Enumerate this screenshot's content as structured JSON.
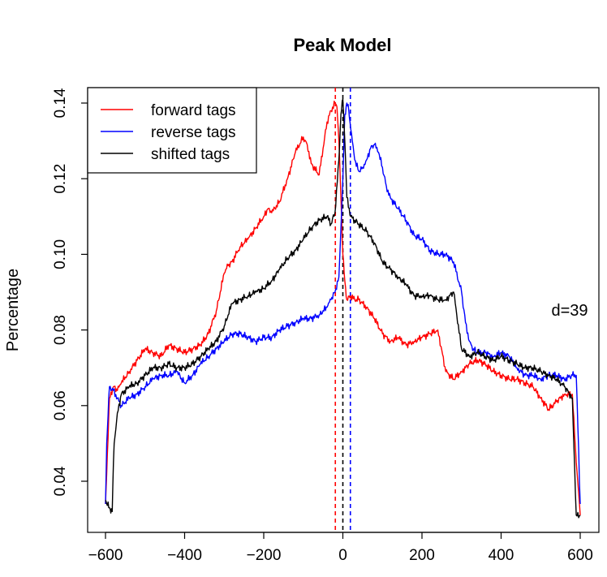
{
  "chart_data": {
    "type": "line",
    "title": "Peak Model",
    "xlabel": "",
    "ylabel": "Percentage",
    "xlim": [
      -620,
      620
    ],
    "ylim": [
      0.029,
      0.142
    ],
    "xticks": [
      -600,
      -400,
      -200,
      0,
      200,
      400,
      600
    ],
    "xtick_labels": [
      "−600",
      "−400",
      "−200",
      "0",
      "200",
      "400",
      "600"
    ],
    "yticks": [
      0.04,
      0.06,
      0.08,
      0.1,
      0.12,
      0.14
    ],
    "ytick_labels": [
      "0.04",
      "0.06",
      "0.08",
      "0.10",
      "0.12",
      "0.14"
    ],
    "legend_position": "top-left",
    "annotation": "d=39",
    "vlines": [
      {
        "x": -19,
        "color": "#ff0000"
      },
      {
        "x": 0,
        "color": "#000000"
      },
      {
        "x": 19,
        "color": "#0000ff"
      }
    ],
    "series": [
      {
        "name": "forward tags",
        "color": "#ff0000",
        "x": [
          -600,
          -597,
          -590,
          -580,
          -570,
          -560,
          -540,
          -520,
          -500,
          -480,
          -460,
          -440,
          -420,
          -400,
          -380,
          -360,
          -340,
          -320,
          -300,
          -290,
          -280,
          -260,
          -240,
          -220,
          -200,
          -190,
          -180,
          -160,
          -140,
          -120,
          -100,
          -90,
          -80,
          -60,
          -50,
          -40,
          -30,
          -20,
          -15,
          -10,
          -5,
          0,
          5,
          10,
          20,
          30,
          40,
          60,
          80,
          100,
          120,
          140,
          160,
          180,
          200,
          220,
          240,
          260,
          280,
          300,
          320,
          340,
          360,
          380,
          400,
          420,
          440,
          460,
          480,
          500,
          520,
          540,
          560,
          580,
          590,
          600
        ],
        "y": [
          0.034,
          0.042,
          0.062,
          0.065,
          0.064,
          0.066,
          0.069,
          0.072,
          0.075,
          0.074,
          0.073,
          0.076,
          0.075,
          0.074,
          0.075,
          0.076,
          0.079,
          0.085,
          0.095,
          0.097,
          0.098,
          0.102,
          0.104,
          0.107,
          0.11,
          0.112,
          0.111,
          0.114,
          0.12,
          0.127,
          0.131,
          0.129,
          0.124,
          0.121,
          0.128,
          0.135,
          0.138,
          0.14,
          0.139,
          0.13,
          0.115,
          0.1,
          0.093,
          0.088,
          0.089,
          0.088,
          0.088,
          0.086,
          0.083,
          0.079,
          0.077,
          0.078,
          0.076,
          0.077,
          0.078,
          0.079,
          0.08,
          0.069,
          0.067,
          0.069,
          0.071,
          0.072,
          0.071,
          0.069,
          0.068,
          0.067,
          0.067,
          0.066,
          0.065,
          0.062,
          0.059,
          0.061,
          0.063,
          0.063,
          0.045,
          0.031
        ]
      },
      {
        "name": "reverse tags",
        "color": "#0000ff",
        "x": [
          -600,
          -597,
          -590,
          -580,
          -570,
          -560,
          -540,
          -520,
          -500,
          -480,
          -460,
          -440,
          -420,
          -400,
          -380,
          -360,
          -340,
          -320,
          -300,
          -280,
          -260,
          -240,
          -220,
          -200,
          -180,
          -160,
          -140,
          -120,
          -100,
          -80,
          -60,
          -40,
          -30,
          -20,
          -10,
          0,
          5,
          10,
          15,
          20,
          30,
          40,
          50,
          60,
          70,
          80,
          90,
          100,
          110,
          120,
          140,
          160,
          180,
          200,
          220,
          240,
          260,
          280,
          300,
          310,
          320,
          330,
          340,
          360,
          380,
          400,
          420,
          440,
          460,
          480,
          500,
          520,
          540,
          560,
          580,
          590,
          600
        ],
        "y": [
          0.034,
          0.05,
          0.065,
          0.064,
          0.062,
          0.06,
          0.062,
          0.063,
          0.065,
          0.067,
          0.068,
          0.068,
          0.069,
          0.066,
          0.068,
          0.071,
          0.073,
          0.075,
          0.077,
          0.079,
          0.079,
          0.078,
          0.077,
          0.078,
          0.078,
          0.08,
          0.081,
          0.082,
          0.083,
          0.083,
          0.084,
          0.086,
          0.088,
          0.09,
          0.094,
          0.12,
          0.137,
          0.14,
          0.138,
          0.133,
          0.125,
          0.122,
          0.123,
          0.125,
          0.128,
          0.129,
          0.127,
          0.123,
          0.118,
          0.115,
          0.112,
          0.109,
          0.105,
          0.104,
          0.101,
          0.1,
          0.1,
          0.098,
          0.09,
          0.082,
          0.077,
          0.075,
          0.074,
          0.074,
          0.073,
          0.074,
          0.073,
          0.07,
          0.068,
          0.068,
          0.067,
          0.068,
          0.068,
          0.067,
          0.068,
          0.068,
          0.034
        ]
      },
      {
        "name": "shifted tags",
        "color": "#000000",
        "x": [
          -600,
          -597,
          -590,
          -583,
          -580,
          -578,
          -570,
          -560,
          -540,
          -520,
          -500,
          -480,
          -460,
          -440,
          -420,
          -400,
          -380,
          -360,
          -340,
          -320,
          -300,
          -280,
          -260,
          -240,
          -220,
          -200,
          -180,
          -160,
          -140,
          -120,
          -100,
          -80,
          -60,
          -40,
          -30,
          -20,
          -10,
          -5,
          0,
          5,
          10,
          20,
          30,
          40,
          60,
          80,
          100,
          120,
          140,
          160,
          180,
          200,
          220,
          240,
          260,
          280,
          300,
          320,
          340,
          360,
          380,
          400,
          420,
          440,
          460,
          480,
          500,
          520,
          540,
          560,
          580,
          590,
          600
        ],
        "y": [
          0.035,
          0.034,
          0.033,
          0.032,
          0.045,
          0.05,
          0.058,
          0.063,
          0.065,
          0.066,
          0.068,
          0.07,
          0.07,
          0.071,
          0.07,
          0.07,
          0.071,
          0.073,
          0.075,
          0.077,
          0.081,
          0.087,
          0.088,
          0.089,
          0.09,
          0.091,
          0.093,
          0.096,
          0.099,
          0.101,
          0.104,
          0.107,
          0.109,
          0.11,
          0.108,
          0.111,
          0.125,
          0.137,
          0.141,
          0.13,
          0.115,
          0.11,
          0.109,
          0.108,
          0.106,
          0.103,
          0.098,
          0.096,
          0.094,
          0.092,
          0.089,
          0.089,
          0.089,
          0.088,
          0.088,
          0.09,
          0.075,
          0.073,
          0.074,
          0.073,
          0.072,
          0.073,
          0.072,
          0.071,
          0.07,
          0.07,
          0.069,
          0.068,
          0.067,
          0.065,
          0.062,
          0.031,
          0.031
        ]
      }
    ]
  }
}
